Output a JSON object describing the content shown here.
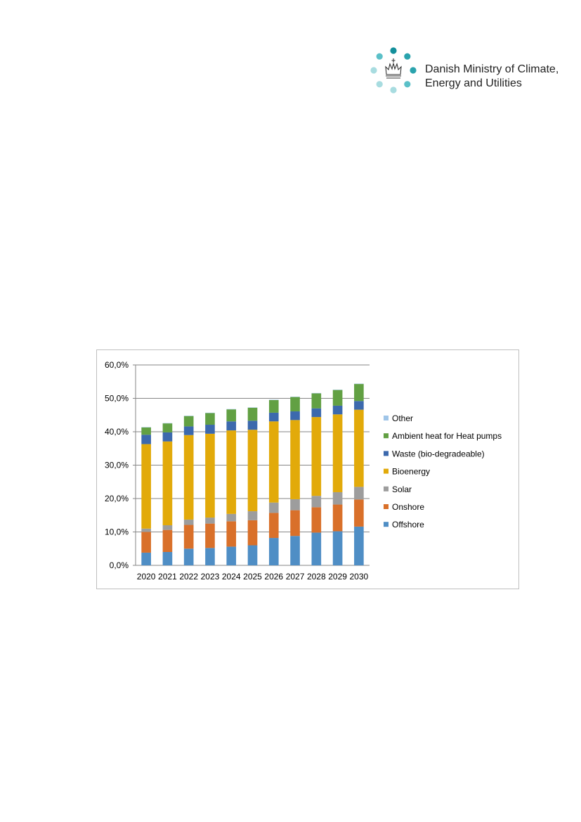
{
  "logo": {
    "line1": "Danish Ministry of Climate,",
    "line2": "Energy and Utilities",
    "icon": "royal-crown-icon",
    "dot_colors": [
      "#138f9b",
      "#2aa3ad",
      "#5bc0c8",
      "#a8dce0"
    ]
  },
  "chart_data": {
    "type": "bar",
    "stacked": true,
    "categories": [
      "2020",
      "2021",
      "2022",
      "2023",
      "2024",
      "2025",
      "2026",
      "2027",
      "2028",
      "2029",
      "2030"
    ],
    "ylim": [
      0,
      60
    ],
    "yticks": [
      "0,0%",
      "10,0%",
      "20,0%",
      "30,0%",
      "40,0%",
      "50,0%",
      "60,0%"
    ],
    "grid": true,
    "legend_position": "right",
    "series": [
      {
        "name": "Offshore",
        "color": "#4f8ec5",
        "values": [
          3.8,
          4.0,
          5.0,
          5.2,
          5.6,
          6.0,
          8.2,
          8.8,
          9.8,
          10.2,
          11.6
        ]
      },
      {
        "name": "Onshore",
        "color": "#d9702a",
        "values": [
          6.2,
          6.6,
          7.1,
          7.3,
          7.6,
          7.5,
          7.5,
          7.7,
          7.6,
          8.0,
          8.1
        ]
      },
      {
        "name": "Solar",
        "color": "#9d9d9d",
        "values": [
          1.0,
          1.4,
          1.6,
          1.8,
          2.2,
          2.7,
          3.1,
          3.3,
          3.4,
          3.7,
          3.8
        ]
      },
      {
        "name": "Bioenergy",
        "color": "#e2aa0a",
        "values": [
          25.3,
          25.1,
          25.3,
          25.1,
          25.0,
          24.4,
          24.3,
          23.7,
          23.6,
          23.3,
          23.1
        ]
      },
      {
        "name": "Waste (bio-degradeable)",
        "color": "#3c69ad",
        "values": [
          2.8,
          2.7,
          2.6,
          2.7,
          2.7,
          2.7,
          2.6,
          2.6,
          2.6,
          2.6,
          2.6
        ]
      },
      {
        "name": "Ambient heat for Heat pumps",
        "color": "#62a043",
        "values": [
          2.2,
          2.7,
          3.1,
          3.5,
          3.6,
          3.9,
          3.8,
          4.3,
          4.5,
          4.7,
          5.1
        ]
      },
      {
        "name": "Other",
        "color": "#9fc5e8",
        "values": [
          0.1,
          0.1,
          0.1,
          0.1,
          0.1,
          0.1,
          0.1,
          0.1,
          0.1,
          0.1,
          0.1
        ]
      }
    ]
  }
}
